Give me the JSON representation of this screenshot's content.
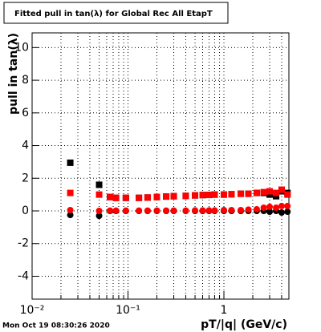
{
  "chart_data": {
    "type": "scatter",
    "title": "Fitted pull in tan(λ) for Global Rec All EtapT",
    "x_label": "pT/|q| (GeV/c)",
    "y_label": "pull in tan(λ)",
    "footer": "Mon Oct 19 08:30:26 2020",
    "log_x": true,
    "grid": true,
    "xlim": [
      0.01,
      4.76
    ],
    "ylim": [
      -5.4,
      10.9
    ],
    "xticks": [
      {
        "value": 0.01,
        "label": "10⁻²"
      },
      {
        "value": 0.1,
        "label": "10⁻¹"
      },
      1
    ],
    "xminorticks": [
      0.02,
      0.03,
      0.04,
      0.05,
      0.06,
      0.07,
      0.08,
      0.09,
      0.2,
      0.3,
      0.4,
      0.5,
      0.6,
      0.7,
      0.8,
      0.9,
      2,
      3,
      4
    ],
    "yticks": [
      -4,
      -2,
      0,
      2,
      4,
      6,
      8,
      10
    ],
    "x": [
      0.025,
      0.05,
      0.065,
      0.075,
      0.095,
      0.13,
      0.16,
      0.2,
      0.25,
      0.3,
      0.4,
      0.5,
      0.6,
      0.7,
      0.8,
      1.0,
      1.2,
      1.5,
      1.8,
      2.2,
      2.6,
      3.0,
      3.5,
      4.0,
      4.6
    ],
    "series": [
      {
        "marker": "square",
        "color": "#000000",
        "values": [
          2.95,
          1.6,
          0.85,
          0.8,
          0.8,
          0.8,
          0.82,
          0.85,
          0.88,
          0.9,
          0.92,
          0.95,
          0.97,
          0.98,
          1.0,
          1.0,
          1.02,
          1.05,
          1.05,
          1.1,
          1.1,
          1.0,
          0.9,
          1.2,
          1.1
        ]
      },
      {
        "marker": "circle",
        "color": "#000000",
        "values": [
          -0.25,
          -0.3,
          0,
          0,
          0,
          0,
          0,
          0,
          0,
          0,
          0,
          0,
          0,
          0,
          0,
          0,
          0,
          0,
          0,
          0,
          0,
          -0.05,
          0,
          -0.1,
          -0.05
        ]
      },
      {
        "marker": "square",
        "color": "#ff0000",
        "values": [
          1.1,
          1.0,
          0.85,
          0.8,
          0.8,
          0.8,
          0.82,
          0.85,
          0.88,
          0.9,
          0.92,
          0.95,
          0.97,
          0.98,
          1.0,
          1.0,
          1.02,
          1.05,
          1.05,
          1.1,
          1.15,
          1.2,
          1.1,
          1.3,
          1.0
        ]
      },
      {
        "marker": "circle",
        "color": "#ff0000",
        "values": [
          0.05,
          0.0,
          0.02,
          0.02,
          0.02,
          0.02,
          0.02,
          0.02,
          0.02,
          0.02,
          0.02,
          0.03,
          0.03,
          0.03,
          0.03,
          0.05,
          0.05,
          0.05,
          0.08,
          0.1,
          0.2,
          0.25,
          0.2,
          0.3,
          0.3
        ]
      }
    ]
  }
}
